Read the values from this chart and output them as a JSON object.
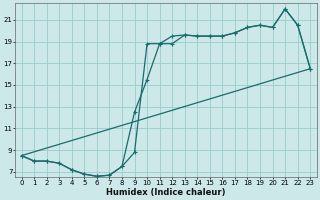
{
  "xlabel": "Humidex (Indice chaleur)",
  "background_color": "#cce8e8",
  "grid_color": "#99cccc",
  "line_color": "#1a6b6b",
  "xlim": [
    -0.5,
    23.5
  ],
  "ylim": [
    6.5,
    22.5
  ],
  "yticks": [
    7,
    9,
    11,
    13,
    15,
    17,
    19,
    21
  ],
  "xticks": [
    0,
    1,
    2,
    3,
    4,
    5,
    6,
    7,
    8,
    9,
    10,
    11,
    12,
    13,
    14,
    15,
    16,
    17,
    18,
    19,
    20,
    21,
    22,
    23
  ],
  "line1_x": [
    0,
    1,
    2,
    3,
    4,
    5,
    6,
    7,
    8,
    9,
    10,
    11,
    12,
    13,
    14,
    15,
    16,
    17,
    18,
    19,
    20,
    21,
    22,
    23
  ],
  "line1_y": [
    8.5,
    8.0,
    8.0,
    7.8,
    7.2,
    6.8,
    6.6,
    6.7,
    7.5,
    8.8,
    18.8,
    18.8,
    19.5,
    19.6,
    19.5,
    19.5,
    19.5,
    19.8,
    20.3,
    20.5,
    20.3,
    22.0,
    20.5,
    16.5
  ],
  "line2_x": [
    0,
    1,
    2,
    3,
    4,
    5,
    6,
    7,
    8,
    9,
    10,
    11,
    12,
    13,
    14,
    15,
    16,
    17,
    18,
    19,
    20,
    21,
    22,
    23
  ],
  "line2_y": [
    8.5,
    8.0,
    8.0,
    7.8,
    7.2,
    6.8,
    6.6,
    6.7,
    7.5,
    12.5,
    15.5,
    18.8,
    18.8,
    19.6,
    19.5,
    19.5,
    19.5,
    19.8,
    20.3,
    20.5,
    20.3,
    22.0,
    20.5,
    16.5
  ],
  "line3_x": [
    0,
    23
  ],
  "line3_y": [
    8.5,
    16.5
  ]
}
